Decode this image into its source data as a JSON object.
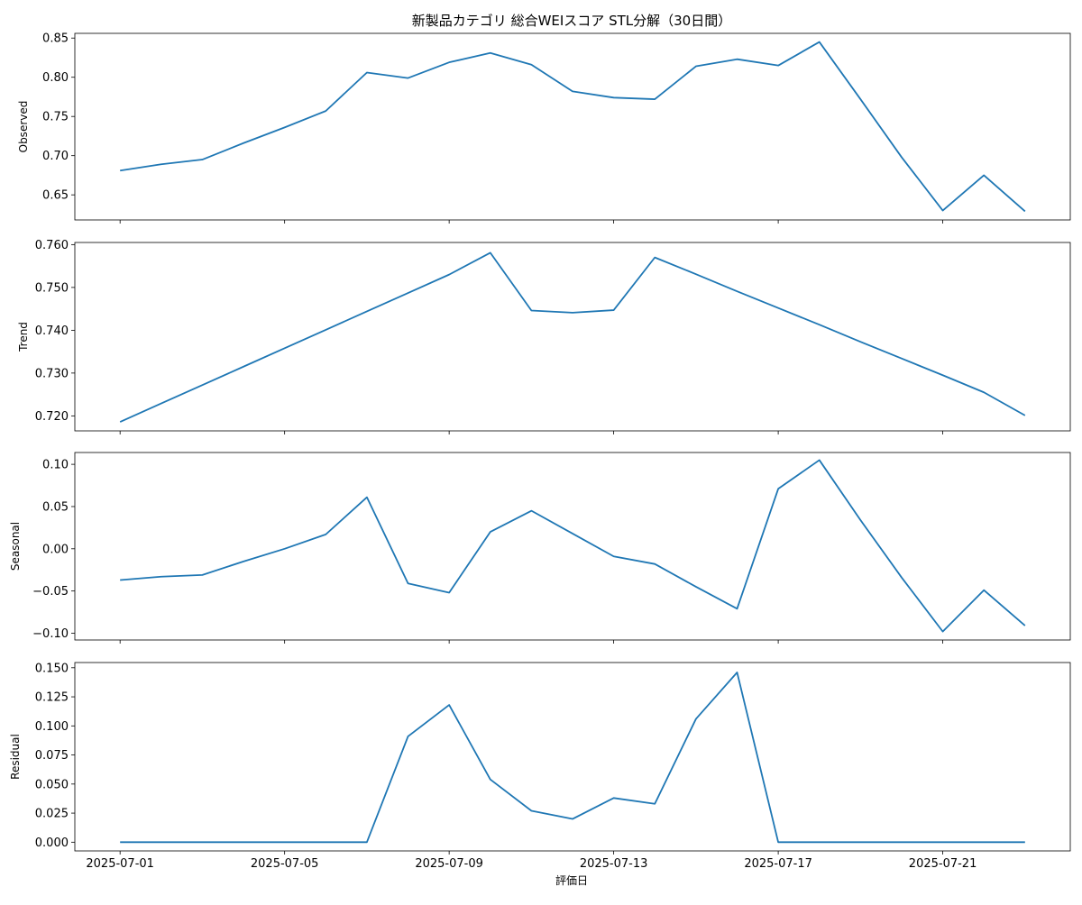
{
  "figure": {
    "title": "新製品カテゴリ 総合WEIスコア STL分解（30日間）",
    "xlabel": "評価日"
  },
  "colors": {
    "line": "#1f77b4",
    "axis": "#000000"
  },
  "chart_data": [
    {
      "type": "line",
      "ylabel": "Observed",
      "grid": false,
      "ylim": [
        0.618,
        0.856
      ],
      "yticks": [
        "0.65",
        "0.70",
        "0.75",
        "0.80",
        "0.85"
      ],
      "x": [
        "2025-07-01",
        "2025-07-02",
        "2025-07-03",
        "2025-07-04",
        "2025-07-05",
        "2025-07-06",
        "2025-07-07",
        "2025-07-08",
        "2025-07-09",
        "2025-07-10",
        "2025-07-11",
        "2025-07-12",
        "2025-07-13",
        "2025-07-14",
        "2025-07-15",
        "2025-07-16",
        "2025-07-17",
        "2025-07-18",
        "2025-07-19",
        "2025-07-20",
        "2025-07-21",
        "2025-07-22",
        "2025-07-23"
      ],
      "values": [
        0.681,
        0.689,
        0.695,
        0.716,
        0.736,
        0.757,
        0.806,
        0.799,
        0.819,
        0.831,
        0.816,
        0.782,
        0.774,
        0.772,
        0.814,
        0.823,
        0.815,
        0.845,
        0.772,
        0.698,
        0.63,
        0.675,
        0.629
      ]
    },
    {
      "type": "line",
      "ylabel": "Trend",
      "grid": false,
      "ylim": [
        0.7165,
        0.7605
      ],
      "yticks": [
        "0.720",
        "0.730",
        "0.740",
        "0.750",
        "0.760"
      ],
      "x": [
        "2025-07-01",
        "2025-07-02",
        "2025-07-03",
        "2025-07-04",
        "2025-07-05",
        "2025-07-06",
        "2025-07-07",
        "2025-07-08",
        "2025-07-09",
        "2025-07-10",
        "2025-07-11",
        "2025-07-12",
        "2025-07-13",
        "2025-07-14",
        "2025-07-15",
        "2025-07-16",
        "2025-07-17",
        "2025-07-18",
        "2025-07-19",
        "2025-07-20",
        "2025-07-21",
        "2025-07-22",
        "2025-07-23"
      ],
      "values": [
        0.7186,
        0.7229,
        0.7272,
        0.7315,
        0.7358,
        0.7401,
        0.7444,
        0.7487,
        0.753,
        0.7581,
        0.7446,
        0.7441,
        0.7447,
        0.757,
        0.7531,
        0.7491,
        0.7452,
        0.7413,
        0.7373,
        0.7334,
        0.7295,
        0.7255,
        0.7201
      ]
    },
    {
      "type": "line",
      "ylabel": "Seasonal",
      "grid": false,
      "ylim": [
        -0.108,
        0.114
      ],
      "yticks": [
        "−0.10",
        "−0.05",
        "0.00",
        "0.05",
        "0.10"
      ],
      "x": [
        "2025-07-01",
        "2025-07-02",
        "2025-07-03",
        "2025-07-04",
        "2025-07-05",
        "2025-07-06",
        "2025-07-07",
        "2025-07-08",
        "2025-07-09",
        "2025-07-10",
        "2025-07-11",
        "2025-07-12",
        "2025-07-13",
        "2025-07-14",
        "2025-07-15",
        "2025-07-16",
        "2025-07-17",
        "2025-07-18",
        "2025-07-19",
        "2025-07-20",
        "2025-07-21",
        "2025-07-22",
        "2025-07-23"
      ],
      "values": [
        -0.037,
        -0.033,
        -0.031,
        -0.015,
        0.0,
        0.017,
        0.061,
        -0.041,
        -0.052,
        0.02,
        0.045,
        0.018,
        -0.009,
        -0.018,
        -0.045,
        -0.071,
        0.071,
        0.105,
        0.034,
        -0.034,
        -0.098,
        -0.049,
        -0.091
      ]
    },
    {
      "type": "line",
      "ylabel": "Residual",
      "grid": false,
      "ylim": [
        -0.0075,
        0.1545
      ],
      "yticks": [
        "0.000",
        "0.025",
        "0.050",
        "0.075",
        "0.100",
        "0.125",
        "0.150"
      ],
      "x": [
        "2025-07-01",
        "2025-07-02",
        "2025-07-03",
        "2025-07-04",
        "2025-07-05",
        "2025-07-06",
        "2025-07-07",
        "2025-07-08",
        "2025-07-09",
        "2025-07-10",
        "2025-07-11",
        "2025-07-12",
        "2025-07-13",
        "2025-07-14",
        "2025-07-15",
        "2025-07-16",
        "2025-07-17",
        "2025-07-18",
        "2025-07-19",
        "2025-07-20",
        "2025-07-21",
        "2025-07-22",
        "2025-07-23"
      ],
      "values": [
        0,
        0,
        0,
        0,
        0,
        0,
        0,
        0.091,
        0.118,
        0.054,
        0.027,
        0.02,
        0.038,
        0.033,
        0.106,
        0.146,
        0,
        0,
        0,
        0,
        0,
        0,
        0
      ]
    }
  ],
  "xticks": [
    "2025-07-01",
    "2025-07-05",
    "2025-07-09",
    "2025-07-13",
    "2025-07-17",
    "2025-07-21"
  ]
}
